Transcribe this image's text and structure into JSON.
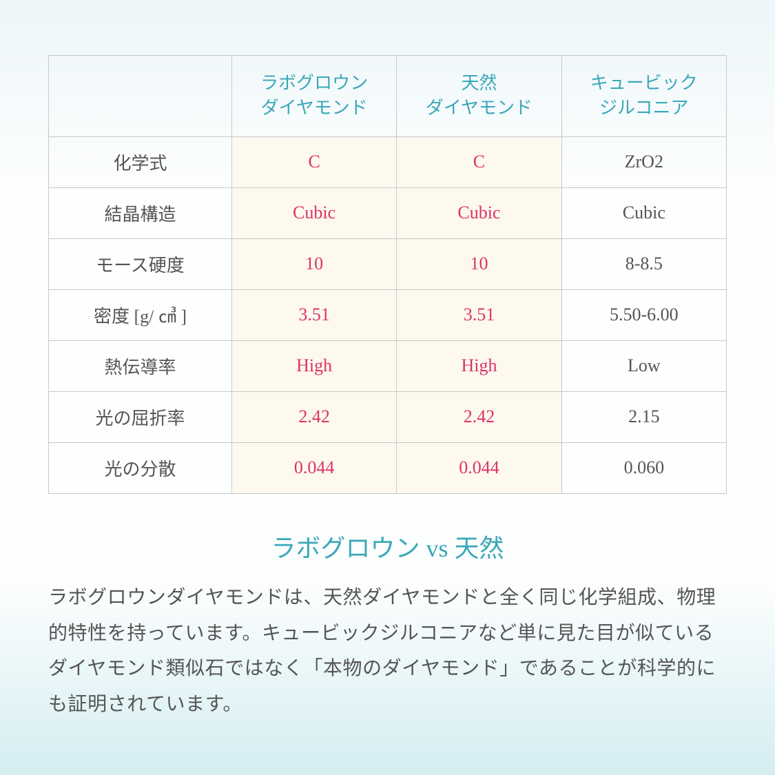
{
  "table": {
    "border_color": "#c8c8c8",
    "header_text_color": "#3aa8b8",
    "row_label_color": "#555555",
    "highlight_bg": "#fdf9ee",
    "highlight_text_color": "#dc3366",
    "default_text_color": "#555555",
    "col_header_1": "",
    "col_header_2": "ラボグロウン\nダイヤモンド",
    "col_header_3": "天然\nダイヤモンド",
    "col_header_4": "キュービック\nジルコニア",
    "rows": [
      {
        "label": "化学式",
        "lab": "C",
        "nat": "C",
        "cz": "ZrO2"
      },
      {
        "label": "結晶構造",
        "lab": "Cubic",
        "nat": "Cubic",
        "cz": "Cubic"
      },
      {
        "label": "モース硬度",
        "lab": "10",
        "nat": "10",
        "cz": "8-8.5"
      },
      {
        "label": "密度 [g/ ㎤ ]",
        "lab": "3.51",
        "nat": "3.51",
        "cz": "5.50-6.00"
      },
      {
        "label": "熱伝導率",
        "lab": "High",
        "nat": "High",
        "cz": "Low"
      },
      {
        "label": "光の屈折率",
        "lab": "2.42",
        "nat": "2.42",
        "cz": "2.15"
      },
      {
        "label": "光の分散",
        "lab": "0.044",
        "nat": "0.044",
        "cz": "0.060"
      }
    ]
  },
  "heading": "ラボグロウン vs 天然",
  "description": "ラボグロウンダイヤモンドは、天然ダイヤモンドと全く同じ化学組成、物理的特性を持っています。キュービックジルコニアなど単に見た目が似ているダイヤモンド類似石ではなく「本物のダイヤモンド」であることが科学的にも証明されています。",
  "colors": {
    "bg_gradient_top": "#edf6f9",
    "bg_gradient_mid": "#fdfefe",
    "bg_gradient_bottom": "#d4eef2",
    "heading_color": "#3aa8b8",
    "desc_color": "#555555"
  },
  "typography": {
    "table_fontsize": 26,
    "heading_fontsize": 36,
    "desc_fontsize": 28
  }
}
